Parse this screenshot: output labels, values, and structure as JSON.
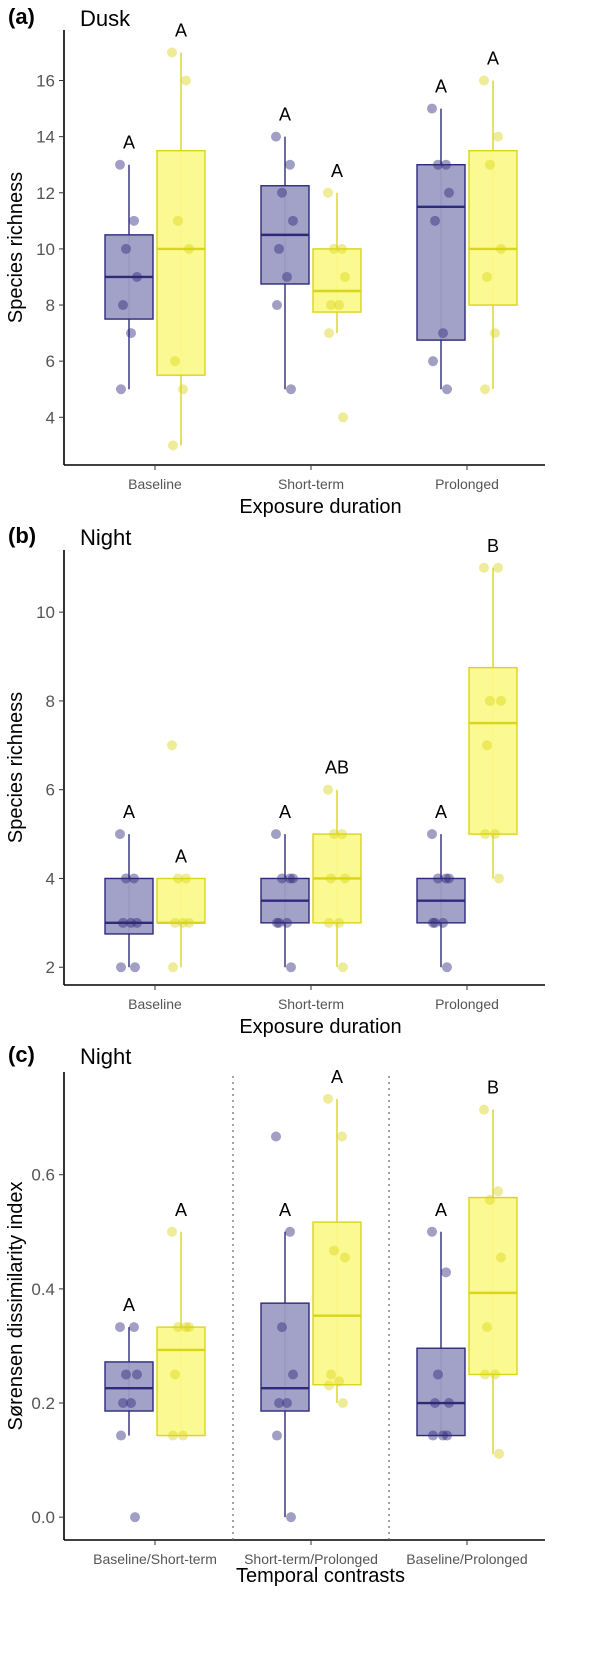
{
  "colors": {
    "group1": "#2e2a7a",
    "group1_fill": "#9d9cc4",
    "group2": "#d9d51a",
    "group2_fill": "#fbf98b"
  },
  "chart_data": [
    {
      "type": "box",
      "panel_label": "(a)",
      "title": "Dusk",
      "xlabel": "Exposure duration",
      "ylabel": "Species richness",
      "ylim": [
        2.3,
        17.8
      ],
      "yticks": [
        4,
        6,
        8,
        10,
        12,
        14,
        16
      ],
      "categories": [
        "Baseline",
        "Short-term",
        "Prolonged"
      ],
      "series_boxes": [
        [
          {
            "q1": 7.5,
            "median": 9,
            "q3": 10.5,
            "whisker_low": 5,
            "whisker_high": 13,
            "points": [
              13,
              11,
              10,
              9,
              8,
              7,
              5
            ],
            "letter": "A"
          },
          {
            "q1": 5.5,
            "median": 10,
            "q3": 13.5,
            "whisker_low": 3,
            "whisker_high": 17,
            "points": [
              17,
              16,
              11,
              10,
              6,
              5,
              3
            ],
            "letter": "A"
          }
        ],
        [
          {
            "q1": 8.75,
            "median": 10.5,
            "q3": 12.25,
            "whisker_low": 5,
            "whisker_high": 14,
            "points": [
              14,
              13,
              12,
              11,
              10,
              9,
              8,
              5
            ],
            "letter": "A"
          },
          {
            "q1": 7.75,
            "median": 8.5,
            "q3": 10,
            "whisker_low": 7,
            "whisker_high": 12,
            "points": [
              12,
              10,
              10,
              9,
              8,
              8,
              7,
              4
            ],
            "letter": "A"
          }
        ],
        [
          {
            "q1": 6.75,
            "median": 11.5,
            "q3": 13,
            "whisker_low": 5,
            "whisker_high": 15,
            "points": [
              15,
              13,
              13,
              12,
              11,
              7,
              6,
              5
            ],
            "letter": "A"
          },
          {
            "q1": 8,
            "median": 10,
            "q3": 13.5,
            "whisker_low": 5,
            "whisker_high": 16,
            "points": [
              16,
              14,
              13,
              10,
              9,
              7,
              5
            ],
            "letter": "A"
          }
        ]
      ]
    },
    {
      "type": "box",
      "panel_label": "(b)",
      "title": "Night",
      "xlabel": "Exposure duration",
      "ylabel": "Species richness",
      "ylim": [
        1.6,
        11.4
      ],
      "yticks": [
        2,
        4,
        6,
        8,
        10
      ],
      "categories": [
        "Baseline",
        "Short-term",
        "Prolonged"
      ],
      "series_boxes": [
        [
          {
            "q1": 2.75,
            "median": 3,
            "q3": 4,
            "whisker_low": 2,
            "whisker_high": 5,
            "points": [
              5,
              4,
              4,
              3,
              3,
              3,
              2,
              2
            ],
            "letter": "A"
          },
          {
            "q1": 3,
            "median": 3,
            "q3": 4,
            "whisker_low": 2,
            "whisker_high": 4,
            "points": [
              7,
              4,
              4,
              3,
              3,
              3,
              2
            ],
            "letter": "A"
          }
        ],
        [
          {
            "q1": 3,
            "median": 3.5,
            "q3": 4,
            "whisker_low": 2,
            "whisker_high": 5,
            "points": [
              5,
              4,
              4,
              4,
              3,
              3,
              3,
              2
            ],
            "letter": "A"
          },
          {
            "q1": 3,
            "median": 4,
            "q3": 5,
            "whisker_low": 2,
            "whisker_high": 6,
            "points": [
              6,
              5,
              5,
              4,
              4,
              3,
              3,
              2
            ],
            "letter": "AB"
          }
        ],
        [
          {
            "q1": 3,
            "median": 3.5,
            "q3": 4,
            "whisker_low": 2,
            "whisker_high": 5,
            "points": [
              5,
              4,
              4,
              4,
              3,
              3,
              3,
              2
            ],
            "letter": "A"
          },
          {
            "q1": 5,
            "median": 7.5,
            "q3": 8.75,
            "whisker_low": 4,
            "whisker_high": 11,
            "points": [
              11,
              11,
              8,
              8,
              7,
              5,
              5,
              4
            ],
            "letter": "B"
          }
        ]
      ]
    },
    {
      "type": "box",
      "panel_label": "(c)",
      "title": "Night",
      "xlabel": "Temporal contrasts",
      "ylabel": "Sørensen dissimilarity index",
      "ylim": [
        -0.04,
        0.78
      ],
      "yticks": [
        0.0,
        0.2,
        0.4,
        0.6
      ],
      "categories": [
        "Baseline/Short-term",
        "Short-term/Prolonged",
        "Baseline/Prolonged"
      ],
      "series_boxes": [
        [
          {
            "q1": 0.186,
            "median": 0.226,
            "q3": 0.272,
            "whisker_low": 0.143,
            "whisker_high": 0.333,
            "points": [
              0.333,
              0.333,
              0.25,
              0.25,
              0.2,
              0.2,
              0.143,
              0.0
            ],
            "letter": "A"
          },
          {
            "q1": 0.143,
            "median": 0.293,
            "q3": 0.333,
            "whisker_low": 0.143,
            "whisker_high": 0.5,
            "points": [
              0.5,
              0.333,
              0.333,
              0.333,
              0.25,
              0.143,
              0.143
            ],
            "letter": "A"
          }
        ],
        [
          {
            "q1": 0.186,
            "median": 0.226,
            "q3": 0.375,
            "whisker_low": 0.0,
            "whisker_high": 0.5,
            "points": [
              0.667,
              0.5,
              0.333,
              0.25,
              0.2,
              0.2,
              0.143,
              0.0
            ],
            "letter": "A"
          },
          {
            "q1": 0.232,
            "median": 0.353,
            "q3": 0.517,
            "whisker_low": 0.2,
            "whisker_high": 0.733,
            "points": [
              0.733,
              0.667,
              0.467,
              0.455,
              0.25,
              0.238,
              0.231,
              0.2
            ],
            "letter": "A"
          }
        ],
        [
          {
            "q1": 0.143,
            "median": 0.2,
            "q3": 0.296,
            "whisker_low": 0.143,
            "whisker_high": 0.5,
            "points": [
              0.5,
              0.429,
              0.25,
              0.2,
              0.2,
              0.143,
              0.143,
              0.143
            ],
            "letter": "A"
          },
          {
            "q1": 0.25,
            "median": 0.393,
            "q3": 0.56,
            "whisker_low": 0.111,
            "whisker_high": 0.714,
            "points": [
              0.714,
              0.571,
              0.556,
              0.455,
              0.333,
              0.25,
              0.25,
              0.111
            ],
            "letter": "B"
          }
        ]
      ],
      "dividers": true
    }
  ]
}
